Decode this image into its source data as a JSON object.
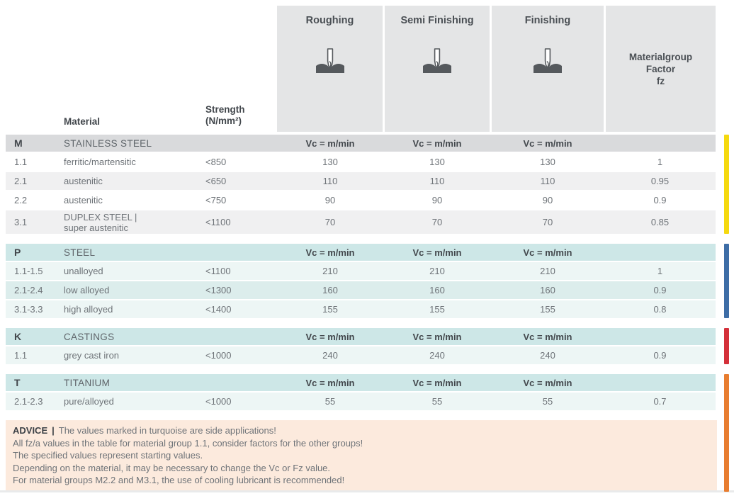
{
  "header": {
    "material_label": "Material",
    "strength_label_line1": "Strength",
    "strength_label_line2": "(N/mm²)",
    "columns": [
      {
        "label": "Roughing",
        "icon": "end-mill-icon"
      },
      {
        "label": "Semi Finishing",
        "icon": "end-mill-icon"
      },
      {
        "label": "Finishing",
        "icon": "end-mill-icon"
      }
    ],
    "factor_label_lines": [
      "Materialgroup",
      "Factor",
      "fz"
    ]
  },
  "vc_unit_label": "Vc = m/min",
  "sections": [
    {
      "code": "M",
      "name": "STAINLESS STEEL",
      "theme": "grey",
      "bar_color": "#F5D90F",
      "rows": [
        {
          "code": "1.1",
          "material": "ferritic/martensitic",
          "strength": "<850",
          "roughing": "130",
          "semi_finishing": "130",
          "finishing": "130",
          "factor": "1"
        },
        {
          "code": "2.1",
          "material": "austenitic",
          "strength": "<650",
          "roughing": "110",
          "semi_finishing": "110",
          "finishing": "110",
          "factor": "0.95"
        },
        {
          "code": "2.2",
          "material": "austenitic",
          "strength": "<750",
          "roughing": "90",
          "semi_finishing": "90",
          "finishing": "90",
          "factor": "0.9"
        },
        {
          "code": "3.1",
          "material": "DUPLEX STEEL |",
          "material_line2": "super austenitic",
          "strength": "<1100",
          "roughing": "70",
          "semi_finishing": "70",
          "finishing": "70",
          "factor": "0.85"
        }
      ]
    },
    {
      "code": "P",
      "name": "STEEL",
      "theme": "teal",
      "bar_color": "#3D6DA6",
      "rows": [
        {
          "code": "1.1-1.5",
          "material": "unalloyed",
          "strength": "<1100",
          "roughing": "210",
          "semi_finishing": "210",
          "finishing": "210",
          "factor": "1"
        },
        {
          "code": "2.1-2.4",
          "material": "low alloyed",
          "strength": "<1300",
          "roughing": "160",
          "semi_finishing": "160",
          "finishing": "160",
          "factor": "0.9"
        },
        {
          "code": "3.1-3.3",
          "material": "high alloyed",
          "strength": "<1400",
          "roughing": "155",
          "semi_finishing": "155",
          "finishing": "155",
          "factor": "0.8"
        }
      ]
    },
    {
      "code": "K",
      "name": "CASTINGS",
      "theme": "teal",
      "bar_color": "#D4303A",
      "rows": [
        {
          "code": "1.1",
          "material": "grey cast iron",
          "strength": "<1000",
          "roughing": "240",
          "semi_finishing": "240",
          "finishing": "240",
          "factor": "0.9"
        }
      ]
    },
    {
      "code": "T",
      "name": "TITANIUM",
      "theme": "teal",
      "bar_color": "#E87D30",
      "bar_extends_to": "advice",
      "rows": [
        {
          "code": "2.1-2.3",
          "material": "pure/alloyed",
          "strength": "<1000",
          "roughing": "55",
          "semi_finishing": "55",
          "finishing": "55",
          "factor": "0.7"
        }
      ]
    }
  ],
  "advice": {
    "title": "ADVICE",
    "separator": "|",
    "lines": [
      "The values marked in turquoise are side applications!",
      "All fz/a values in the table for material group 1.1, consider factors for the other groups!",
      "The specified values represent starting values.",
      "Depending on the material, it may be necessary to change the Vc or Fz value.",
      "For material groups M2.2 and M3.1, the use of cooling lubricant is recommended!"
    ]
  },
  "colors": {
    "header_block_bg": "#E4E5E6",
    "grey_section_header_bg": "#D9DADC",
    "grey_row_alt_bg": "#F0F0F1",
    "teal_section_header_bg": "#CDE7E7",
    "teal_row_light_bg": "#EDF6F5",
    "teal_row_mid_bg": "#DCEDEC",
    "advice_bg": "#FCEADD",
    "bar_yellow": "#F5D90F",
    "bar_blue": "#3D6DA6",
    "bar_red": "#D4303A",
    "bar_orange": "#E87D30",
    "text_dark": "#42474C",
    "text_grey": "#6E7378"
  }
}
